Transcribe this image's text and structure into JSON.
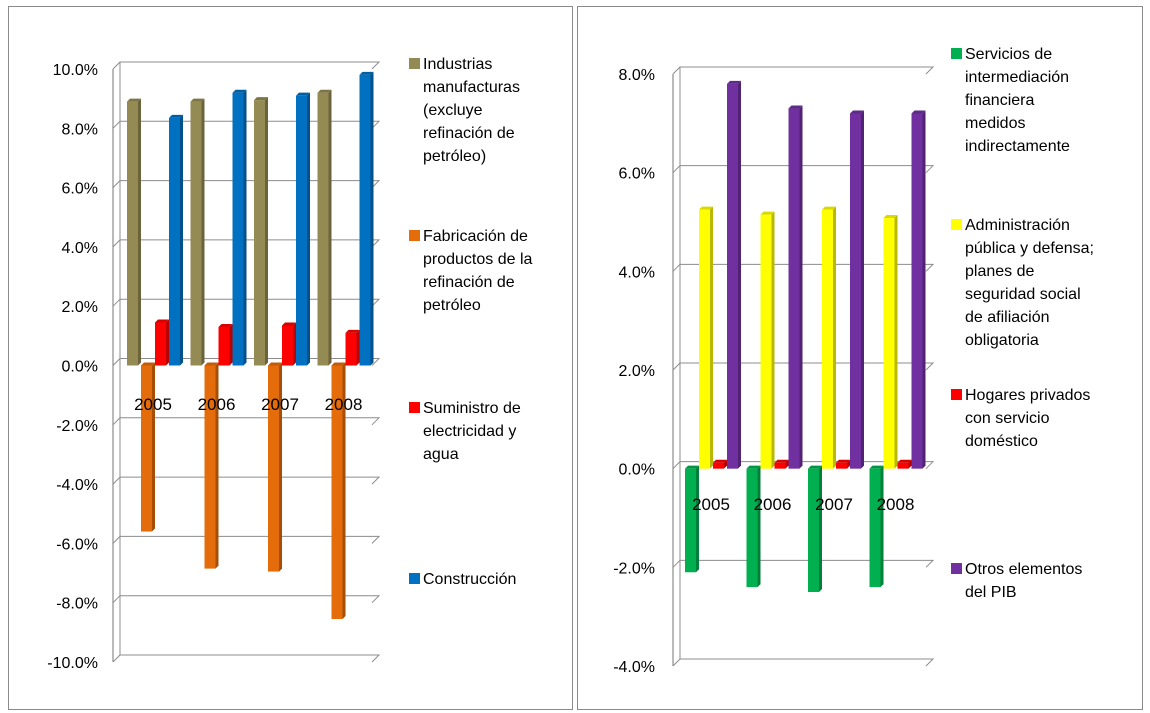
{
  "chart_data": [
    {
      "type": "bar",
      "categories": [
        "2005",
        "2006",
        "2007",
        "2008"
      ],
      "ylim": [
        -0.1,
        0.1
      ],
      "yticks": [
        "10.0%",
        "8.0%",
        "6.0%",
        "4.0%",
        "2.0%",
        "0.0%",
        "-2.0%",
        "-4.0%",
        "-6.0%",
        "-8.0%",
        "-10.0%"
      ],
      "legend_position": "right",
      "series": [
        {
          "name": "Industrias manufacturas (excluye refinación de petróleo)",
          "color": "#948A54",
          "values": [
            0.089,
            0.089,
            0.0895,
            0.092
          ]
        },
        {
          "name": "Fabricación de productos de la refinación de petróleo",
          "color": "#E46C0A",
          "values": [
            -0.056,
            -0.0685,
            -0.0695,
            -0.0855
          ]
        },
        {
          "name": "Suministro de electricidad y agua",
          "color": "#FF0000",
          "values": [
            0.0145,
            0.013,
            0.0135,
            0.011
          ]
        },
        {
          "name": "Construcción",
          "color": "#0070C0",
          "values": [
            0.0835,
            0.092,
            0.091,
            0.098
          ]
        }
      ]
    },
    {
      "type": "bar",
      "categories": [
        "2005",
        "2006",
        "2007",
        "2008"
      ],
      "ylim": [
        -0.04,
        0.08
      ],
      "yticks": [
        "8.0%",
        "6.0%",
        "4.0%",
        "2.0%",
        "0.0%",
        "-2.0%",
        "-4.0%"
      ],
      "legend_position": "right",
      "series": [
        {
          "name": "Servicios de intermediación financiera medidos indirectamente",
          "color": "#00B050",
          "values": [
            -0.021,
            -0.024,
            -0.025,
            -0.024
          ]
        },
        {
          "name": "Administración pública y defensa; planes de seguridad social de afiliación obligatoria",
          "color": "#FFFF00",
          "values": [
            0.0525,
            0.0515,
            0.0525,
            0.0508
          ]
        },
        {
          "name": "Hogares privados con servicio doméstico",
          "color": "#FF0000",
          "values": [
            0.0012,
            0.0012,
            0.0012,
            0.0012
          ]
        },
        {
          "name": "Otros elementos del PIB",
          "color": "#7030A0",
          "values": [
            0.078,
            0.073,
            0.072,
            0.072
          ]
        }
      ]
    }
  ]
}
